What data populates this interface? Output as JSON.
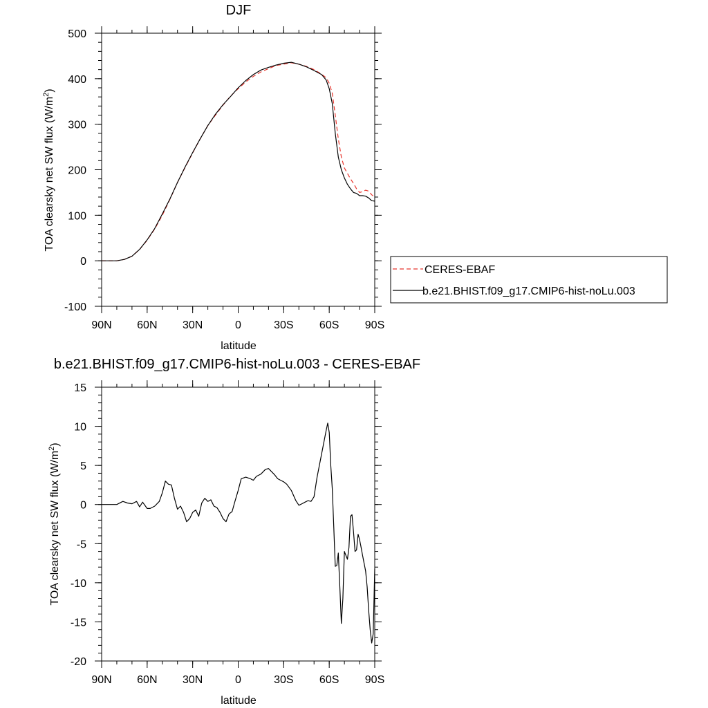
{
  "chart_data": [
    {
      "type": "line",
      "title": "DJF",
      "xlabel": "latitude",
      "ylabel_text": "TOA clearsky net SW flux (W/m",
      "ylabel_sup": "2",
      "ylabel_close": ")",
      "xlim": [
        90,
        -90
      ],
      "ylim": [
        -100,
        500
      ],
      "xticks": [
        90,
        60,
        30,
        0,
        -30,
        -60,
        -90
      ],
      "xtick_labels": [
        "90N",
        "60N",
        "30N",
        "0",
        "30S",
        "60S",
        "90S"
      ],
      "yticks": [
        -100,
        0,
        100,
        200,
        300,
        400,
        500
      ],
      "ytick_labels": [
        "-100",
        "0",
        "100",
        "200",
        "300",
        "400",
        "500"
      ],
      "legend": {
        "placement": "right",
        "entries": [
          "CERES-EBAF",
          "b.e21.BHIST.f09_g17.CMIP6-hist-noLu.003"
        ]
      },
      "series": [
        {
          "name": "CERES-EBAF",
          "color": "#e8342c",
          "dash": true,
          "x": [
            90,
            85,
            80,
            75,
            70,
            65,
            60,
            55,
            50,
            45,
            40,
            35,
            30,
            25,
            20,
            15,
            10,
            5,
            0,
            -5,
            -10,
            -15,
            -20,
            -25,
            -30,
            -35,
            -40,
            -45,
            -50,
            -55,
            -58,
            -60,
            -62,
            -64,
            -66,
            -68,
            -70,
            -72,
            -74,
            -76,
            -78,
            -80,
            -82,
            -84,
            -86,
            -88,
            -90
          ],
          "y": [
            0,
            0,
            0,
            3,
            10,
            25,
            45,
            70,
            100,
            135,
            172,
            205,
            237,
            268,
            297,
            320,
            342,
            362,
            378,
            393,
            405,
            415,
            422,
            429,
            432,
            435,
            432,
            427,
            420,
            410,
            402,
            390,
            368,
            320,
            268,
            228,
            204,
            192,
            180,
            170,
            158,
            150,
            152,
            155,
            153,
            145,
            140
          ]
        },
        {
          "name": "b.e21.BHIST.f09_g17.CMIP6-hist-noLu.003",
          "color": "#000000",
          "dash": false,
          "x": [
            90,
            85,
            80,
            75,
            70,
            65,
            60,
            55,
            50,
            45,
            40,
            35,
            30,
            25,
            20,
            15,
            10,
            5,
            0,
            -5,
            -10,
            -15,
            -20,
            -25,
            -30,
            -35,
            -40,
            -45,
            -50,
            -55,
            -58,
            -60,
            -62,
            -64,
            -66,
            -68,
            -70,
            -72,
            -74,
            -76,
            -78,
            -80,
            -82,
            -84,
            -86,
            -88,
            -90
          ],
          "y": [
            0,
            0,
            0,
            3,
            10,
            25,
            46,
            71,
            103,
            136,
            172,
            206,
            238,
            268,
            297,
            322,
            343,
            361,
            380,
            396,
            409,
            419,
            425,
            430,
            434,
            436,
            432,
            426,
            418,
            409,
            397,
            378,
            345,
            280,
            228,
            200,
            182,
            168,
            158,
            150,
            148,
            143,
            143,
            142,
            138,
            132,
            131
          ]
        }
      ]
    },
    {
      "type": "line",
      "title": "b.e21.BHIST.f09_g17.CMIP6-hist-noLu.003 - CERES-EBAF",
      "xlabel": "latitude",
      "ylabel_text": "TOA clearsky net SW flux (W/m",
      "ylabel_sup": "2",
      "ylabel_close": ")",
      "xlim": [
        90,
        -90
      ],
      "ylim": [
        -20,
        15
      ],
      "xticks": [
        90,
        60,
        30,
        0,
        -30,
        -60,
        -90
      ],
      "xtick_labels": [
        "90N",
        "60N",
        "30N",
        "0",
        "30S",
        "60S",
        "90S"
      ],
      "yticks": [
        -20,
        -15,
        -10,
        -5,
        0,
        5,
        10,
        15
      ],
      "ytick_labels": [
        "-20",
        "-15",
        "-10",
        "-5",
        "0",
        "5",
        "10",
        "15"
      ],
      "series": [
        {
          "name": "",
          "color": "#000000",
          "dash": false,
          "x": [
            90,
            84,
            80,
            76,
            73,
            70,
            67,
            65,
            63,
            60,
            58,
            55,
            52,
            50,
            48,
            46,
            44,
            42,
            40,
            38,
            36,
            34,
            32,
            30,
            28,
            26,
            24,
            22,
            20,
            18,
            16,
            14,
            12,
            10,
            8,
            6,
            4,
            2,
            0,
            -2,
            -5,
            -8,
            -10,
            -12,
            -15,
            -18,
            -20,
            -22,
            -24,
            -26,
            -28,
            -30,
            -32,
            -35,
            -38,
            -40,
            -42,
            -44,
            -46,
            -48,
            -50,
            -52,
            -54,
            -56,
            -58,
            -59,
            -60,
            -61,
            -62,
            -63,
            -64,
            -65,
            -66,
            -67,
            -68,
            -69,
            -70,
            -71,
            -72,
            -73,
            -74,
            -75,
            -76,
            -77,
            -78,
            -79,
            -80,
            -81,
            -82,
            -83,
            -84,
            -85,
            -86,
            -87,
            -88,
            -89,
            -90
          ],
          "y": [
            0,
            0,
            0,
            0.4,
            0.2,
            0.1,
            0.4,
            -0.3,
            0.3,
            -0.5,
            -0.5,
            -0.2,
            0.4,
            1.5,
            3.0,
            2.6,
            2.5,
            0.8,
            -0.6,
            -0.2,
            -1.0,
            -2.2,
            -1.8,
            -1.0,
            -0.7,
            -1.5,
            0.2,
            0.8,
            0.4,
            0.6,
            -0.2,
            -0.4,
            -1.0,
            -1.8,
            -2.2,
            -1.2,
            -0.9,
            0.5,
            1.8,
            3.3,
            3.5,
            3.3,
            3.1,
            3.6,
            3.9,
            4.5,
            4.6,
            4.2,
            3.8,
            3.3,
            3.1,
            2.9,
            2.6,
            1.8,
            0.5,
            -0.1,
            0.1,
            0.3,
            0.5,
            0.4,
            1.0,
            3.5,
            5.5,
            7.5,
            9.5,
            10.4,
            9.2,
            5.0,
            2.0,
            -3.0,
            -7.9,
            -7.8,
            -6.2,
            -10.5,
            -15.2,
            -12.0,
            -6.0,
            -6.5,
            -7.0,
            -5.5,
            -1.5,
            -1.3,
            -3.5,
            -6.0,
            -5.8,
            -3.8,
            -4.5,
            -5.5,
            -6.5,
            -7.5,
            -8.5,
            -10.5,
            -13.5,
            -16.0,
            -17.7,
            -16.5,
            -8.2
          ]
        }
      ]
    }
  ]
}
